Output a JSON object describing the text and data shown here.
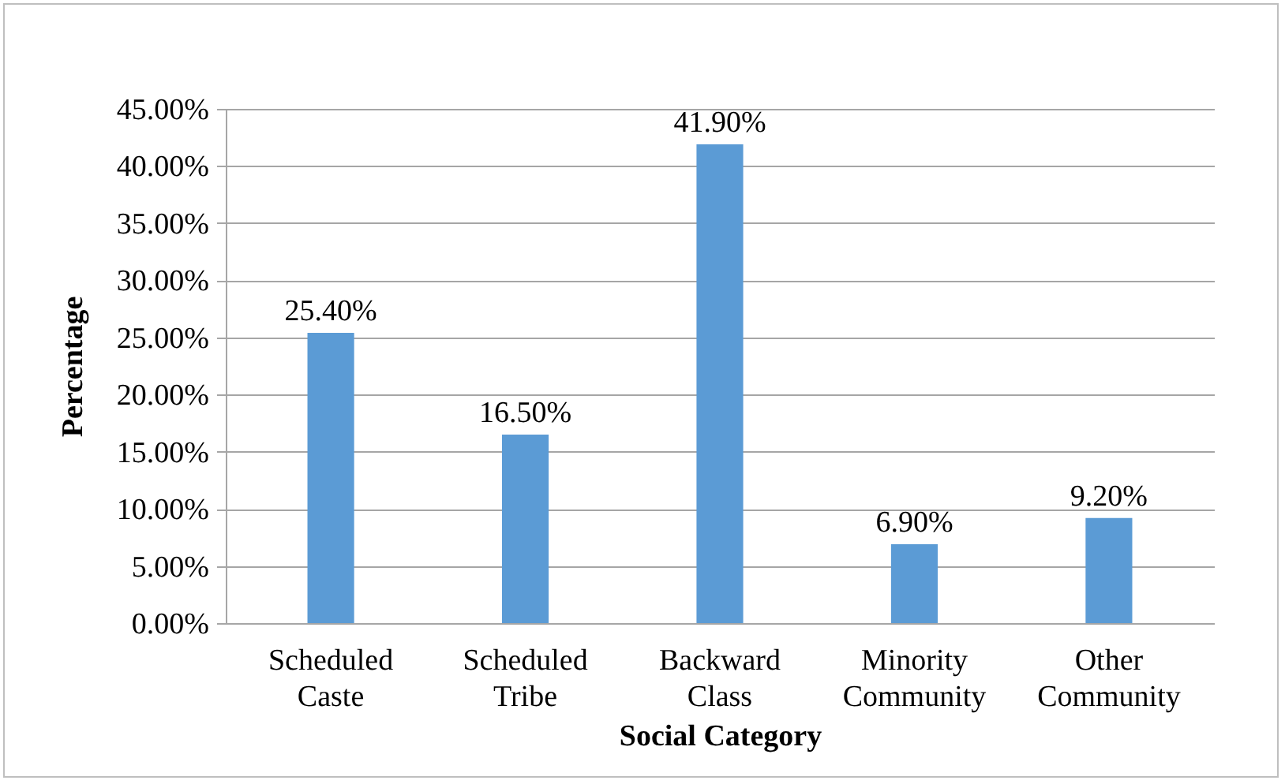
{
  "chart_data": {
    "type": "bar",
    "xlabel": "Social Category",
    "ylabel": "Percentage",
    "categories": [
      "Scheduled Caste",
      "Scheduled Tribe",
      "Backward Class",
      "Minority Community",
      "Other Community"
    ],
    "values": [
      25.4,
      16.5,
      41.9,
      6.9,
      9.2
    ],
    "value_labels": [
      "25.40%",
      "16.50%",
      "41.90%",
      "6.90%",
      "9.20%"
    ],
    "color": "#5b9bd5",
    "ylim": [
      0,
      45
    ],
    "yticks": [
      {
        "value": 0,
        "label": "0.00%"
      },
      {
        "value": 5,
        "label": "5.00%"
      },
      {
        "value": 10,
        "label": "10.00%"
      },
      {
        "value": 15,
        "label": "15.00%"
      },
      {
        "value": 20,
        "label": "20.00%"
      },
      {
        "value": 25,
        "label": "25.00%"
      },
      {
        "value": 30,
        "label": "30.00%"
      },
      {
        "value": 35,
        "label": "35.00%"
      },
      {
        "value": 40,
        "label": "40.00%"
      },
      {
        "value": 45,
        "label": "45.00%"
      }
    ],
    "grid": "y"
  }
}
